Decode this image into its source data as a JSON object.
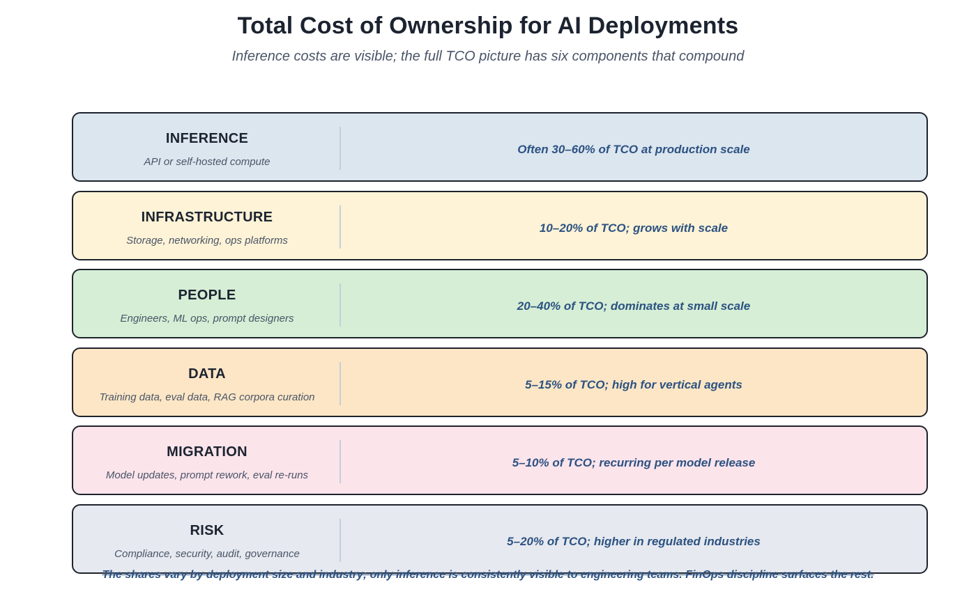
{
  "header": {
    "title": "Total Cost of Ownership for AI Deployments",
    "subtitle": "Inference costs are visible; the full TCO picture has six components that compound"
  },
  "components": [
    {
      "name": "INFERENCE",
      "description": "API or self-hosted compute",
      "share": "Often 30–60% of TCO at production scale",
      "color": "#dce6ef"
    },
    {
      "name": "INFRASTRUCTURE",
      "description": "Storage, networking, ops platforms",
      "share": "10–20% of TCO; grows with scale",
      "color": "#fef3d6"
    },
    {
      "name": "PEOPLE",
      "description": "Engineers, ML ops, prompt designers",
      "share": "20–40% of TCO; dominates at small scale",
      "color": "#d5eed5"
    },
    {
      "name": "DATA",
      "description": "Training data, eval data, RAG corpora curation",
      "share": "5–15% of TCO; high for vertical agents",
      "color": "#fde6c5"
    },
    {
      "name": "MIGRATION",
      "description": "Model updates, prompt rework, eval re-runs",
      "share": "5–10% of TCO; recurring per model release",
      "color": "#fce4eb"
    },
    {
      "name": "RISK",
      "description": "Compliance, security, audit, governance",
      "share": "5–20% of TCO; higher in regulated industries",
      "color": "#e6e9ef"
    }
  ],
  "footnote": "The shares vary by deployment size and industry; only inference is consistently visible to engineering teams. FinOps discipline surfaces the rest."
}
